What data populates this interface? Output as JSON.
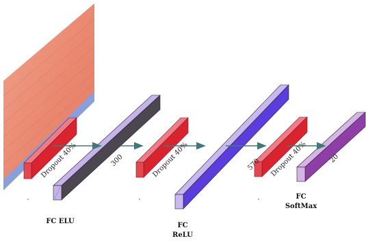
{
  "diagram": {
    "input_heatmap": {
      "colors": {
        "warm": "#e8806a",
        "warm_light": "#f3a98f",
        "cool": "#7fa2e6"
      }
    },
    "arrow_color": "#3f7a78",
    "dropouts": [
      {
        "text": "Dropout 40%",
        "color": "#e0323f"
      },
      {
        "text": "Dropout 40%",
        "color": "#e0323f"
      },
      {
        "text": "Dropout 40%",
        "color": "#e0323f"
      }
    ],
    "fc_layers": [
      {
        "size": "300",
        "title_line1": "FC ELU",
        "title_line2": "",
        "front_color": "#c6b3ec",
        "side_color": "#4b4650"
      },
      {
        "size": "570",
        "title_line1": "FC",
        "title_line2": "ReLU",
        "front_color": "#c9b7f2",
        "side_color": "#5b3dde"
      },
      {
        "size": "20",
        "title_line1": "FC",
        "title_line2": "SoftMax",
        "front_color": "#d6b4e6",
        "side_color": "#8e3ea6"
      }
    ]
  }
}
